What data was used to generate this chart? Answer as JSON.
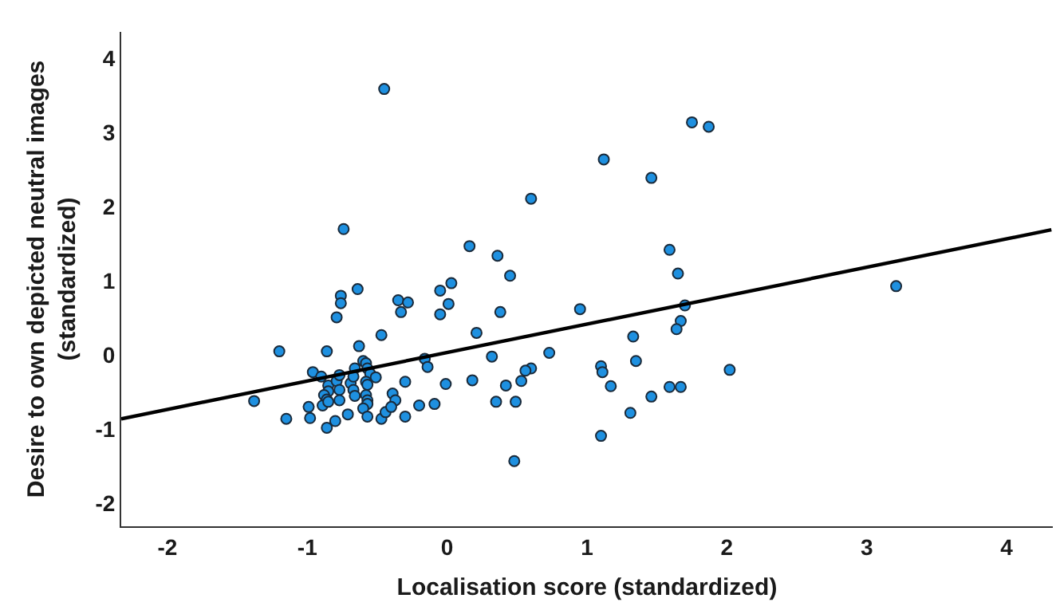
{
  "chart_data": {
    "type": "scatter",
    "xlabel": "Localisation score (standardized)",
    "ylabel": "Desire to own depicted neutral images\n(standardized)",
    "xlim": [
      -2.33,
      4.33
    ],
    "ylim": [
      -2.31,
      4.36
    ],
    "xticks": [
      -2,
      -1,
      0,
      1,
      2,
      3,
      4
    ],
    "yticks": [
      -2,
      -1,
      0,
      1,
      2,
      3,
      4
    ],
    "series": [
      {
        "color": "#1e90e0",
        "marker": "circle",
        "x": [
          -0.45,
          1.75,
          1.87,
          1.12,
          1.46,
          0.6,
          -0.74,
          0.16,
          0.36,
          1.59,
          0.45,
          1.65,
          0.03,
          -0.05,
          -0.64,
          -0.76,
          -0.76,
          -0.35,
          -0.28,
          0.01,
          3.21,
          1.7,
          0.95,
          -0.05,
          0.38,
          -0.33,
          1.67,
          1.64,
          -0.79,
          0.21,
          -0.47,
          1.33,
          0.73,
          -1.2,
          -0.86,
          -0.63,
          0.32,
          -0.16,
          -0.14,
          1.35,
          0.6,
          0.56,
          1.1,
          1.11,
          2.02,
          0.18,
          0.53,
          -0.01,
          -0.3,
          0.42,
          1.17,
          1.59,
          1.67,
          1.46,
          0.35,
          0.49,
          -0.09,
          -0.2,
          1.31,
          -0.3,
          1.1,
          0.48,
          -1.38,
          -1.15,
          -0.96,
          -0.9,
          -0.85,
          -0.85,
          -0.88,
          -0.86,
          -0.89,
          -0.99,
          -0.98,
          -0.86,
          -0.8,
          -0.85,
          -0.79,
          -0.77,
          -0.77,
          -0.77,
          -0.71,
          -0.69,
          -0.66,
          -0.67,
          -0.67,
          -0.66,
          -0.6,
          -0.58,
          -0.57,
          -0.55,
          -0.51,
          -0.58,
          -0.57,
          -0.58,
          -0.57,
          -0.57,
          -0.6,
          -0.57,
          -0.47,
          -0.44,
          -0.39,
          -0.37,
          -0.4
        ],
        "values": [
          3.59,
          3.14,
          3.08,
          2.64,
          2.39,
          2.11,
          1.7,
          1.47,
          1.34,
          1.42,
          1.07,
          1.1,
          0.97,
          0.87,
          0.89,
          0.8,
          0.7,
          0.74,
          0.71,
          0.69,
          0.93,
          0.67,
          0.62,
          0.55,
          0.58,
          0.58,
          0.46,
          0.35,
          0.51,
          0.3,
          0.27,
          0.25,
          0.03,
          0.05,
          0.05,
          0.12,
          -0.02,
          -0.05,
          -0.16,
          -0.08,
          -0.18,
          -0.21,
          -0.15,
          -0.23,
          -0.2,
          -0.34,
          -0.35,
          -0.39,
          -0.36,
          -0.41,
          -0.42,
          -0.43,
          -0.43,
          -0.56,
          -0.63,
          -0.63,
          -0.66,
          -0.68,
          -0.78,
          -0.83,
          -1.09,
          -1.43,
          -0.62,
          -0.86,
          -0.23,
          -0.29,
          -0.41,
          -0.49,
          -0.54,
          -0.6,
          -0.68,
          -0.7,
          -0.85,
          -0.98,
          -0.89,
          -0.63,
          -0.35,
          -0.27,
          -0.47,
          -0.61,
          -0.8,
          -0.38,
          -0.18,
          -0.29,
          -0.47,
          -0.55,
          -0.08,
          -0.11,
          -0.18,
          -0.25,
          -0.3,
          -0.36,
          -0.4,
          -0.54,
          -0.61,
          -0.66,
          -0.72,
          -0.83,
          -0.86,
          -0.77,
          -0.52,
          -0.61,
          -0.7
        ]
      },
      {
        "type": "line",
        "color": "#000000",
        "line_style": "solid",
        "marker": "none",
        "x": [
          -2.33,
          4.32
        ],
        "values": [
          -0.86,
          1.69
        ]
      }
    ]
  }
}
